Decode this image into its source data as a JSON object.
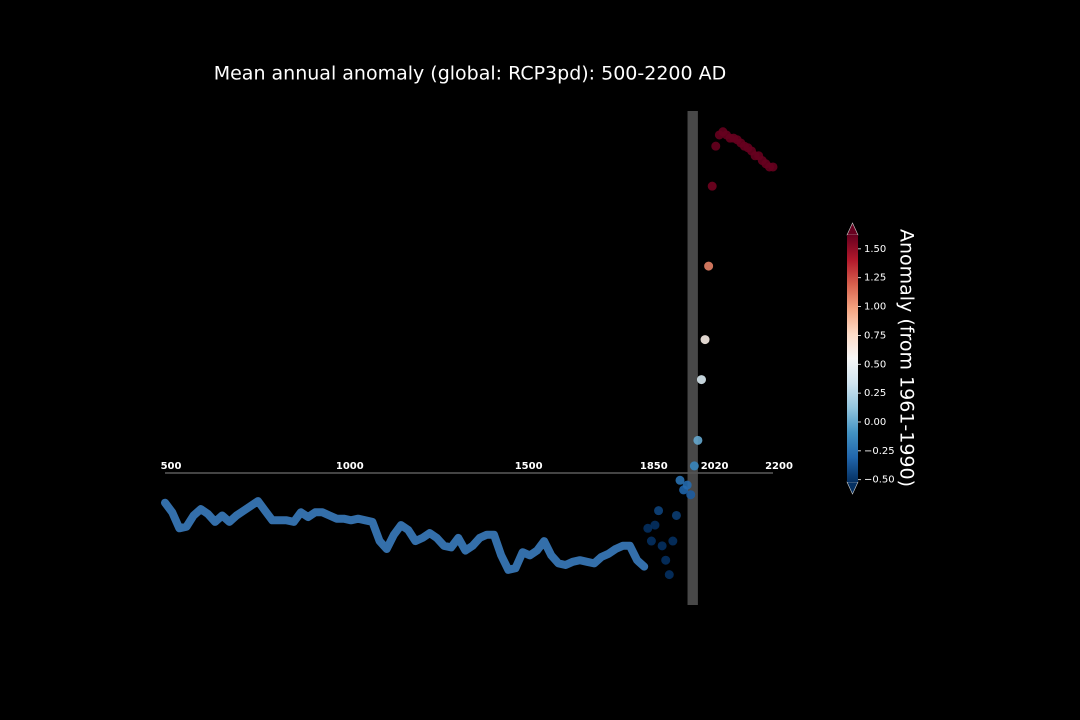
{
  "chart_data": {
    "type": "line",
    "title": "Mean annual anomaly (global: RCP3pd): 500-2200 AD",
    "xlim": [
      500,
      2200
    ],
    "ylim": [
      -1.03,
      2.06
    ],
    "xticks": [
      500,
      1000,
      1500,
      1850,
      2020,
      2200
    ],
    "reference_period": [
      1961,
      1990
    ],
    "series": [
      {
        "style": "line",
        "color": "#3a7bbd",
        "x": [
          500,
          520,
          540,
          560,
          580,
          600,
          620,
          640,
          660,
          680,
          700,
          720,
          740,
          760,
          780,
          800,
          820,
          840,
          860,
          880,
          900,
          920,
          940,
          960,
          980,
          1000,
          1020,
          1040,
          1060,
          1080,
          1100,
          1120,
          1140,
          1160,
          1180,
          1200,
          1220,
          1240,
          1260,
          1280,
          1300,
          1320,
          1340,
          1360,
          1380,
          1400,
          1420,
          1440,
          1460,
          1480,
          1500,
          1520,
          1540,
          1560,
          1580,
          1600,
          1620,
          1640,
          1660,
          1680,
          1700,
          1720,
          1740,
          1760,
          1780,
          1800,
          1820,
          1840
        ],
        "values": [
          -0.39,
          -0.45,
          -0.55,
          -0.54,
          -0.47,
          -0.43,
          -0.46,
          -0.51,
          -0.47,
          -0.51,
          -0.47,
          -0.44,
          -0.41,
          -0.38,
          -0.44,
          -0.5,
          -0.5,
          -0.5,
          -0.51,
          -0.45,
          -0.48,
          -0.45,
          -0.45,
          -0.47,
          -0.49,
          -0.49,
          -0.5,
          -0.49,
          -0.5,
          -0.51,
          -0.63,
          -0.68,
          -0.59,
          -0.53,
          -0.56,
          -0.63,
          -0.61,
          -0.58,
          -0.61,
          -0.66,
          -0.67,
          -0.61,
          -0.69,
          -0.66,
          -0.61,
          -0.59,
          -0.59,
          -0.72,
          -0.81,
          -0.8,
          -0.7,
          -0.72,
          -0.69,
          -0.63,
          -0.72,
          -0.77,
          -0.78,
          -0.76,
          -0.75,
          -0.76,
          -0.77,
          -0.73,
          -0.71,
          -0.68,
          -0.66,
          -0.66,
          -0.75,
          -0.79
        ]
      },
      {
        "style": "dots",
        "colormap": "RdBu_r",
        "x": [
          1850,
          1860,
          1870,
          1880,
          1890,
          1900,
          1910,
          1920,
          1930,
          1940,
          1950,
          1960,
          1970,
          1980,
          1990,
          2000,
          2010,
          2020,
          2030,
          2040,
          2050,
          2060,
          2070,
          2080,
          2090,
          2100,
          2110,
          2120,
          2130,
          2140,
          2150,
          2160,
          2170,
          2180,
          2190,
          2200
        ],
        "values": [
          -0.55,
          -0.63,
          -0.53,
          -0.44,
          -0.66,
          -0.75,
          -0.84,
          -0.63,
          -0.47,
          -0.25,
          -0.31,
          -0.28,
          -0.34,
          -0.16,
          0.0,
          0.38,
          0.63,
          1.09,
          1.59,
          1.84,
          1.91,
          1.93,
          1.91,
          1.89,
          1.89,
          1.88,
          1.86,
          1.84,
          1.83,
          1.81,
          1.78,
          1.78,
          1.75,
          1.73,
          1.71,
          1.71
        ]
      }
    ],
    "colorbar": {
      "label": "Anomaly (from 1961-1990)",
      "colormap": "RdBu_r",
      "clim": [
        -0.52,
        1.62
      ],
      "ticks": [
        {
          "value": -0.5,
          "label": "−0.50"
        },
        {
          "value": -0.25,
          "label": "−0.25"
        },
        {
          "value": 0,
          "label": "0.00"
        },
        {
          "value": 0.25,
          "label": "0.25"
        },
        {
          "value": 0.5,
          "label": "0.50"
        },
        {
          "value": 0.75,
          "label": "0.75"
        },
        {
          "value": 1,
          "label": "1.00"
        },
        {
          "value": 1.25,
          "label": "1.25"
        },
        {
          "value": 1.5,
          "label": "1.50"
        }
      ]
    }
  }
}
